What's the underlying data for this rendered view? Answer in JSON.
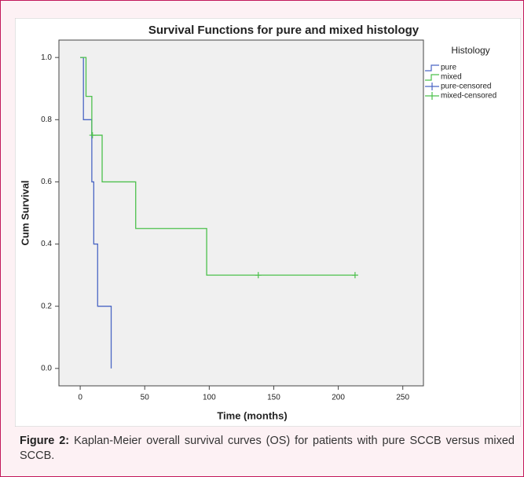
{
  "chart_data": {
    "type": "step",
    "title": "Survival Functions for pure and mixed histology",
    "x_label": "Time (months)",
    "y_label": "Cum Survival",
    "legend_title": "Histology",
    "xlim": [
      -16.5,
      266
    ],
    "xticks": [
      0,
      50,
      100,
      150,
      200,
      250
    ],
    "ylim": [
      -0.056,
      1.056
    ],
    "yticks": [
      {
        "value": 0,
        "label": "0.0"
      },
      {
        "value": 0.2,
        "label": "0.2"
      },
      {
        "value": 0.4,
        "label": "0.4"
      },
      {
        "value": 0.6,
        "label": "0.6"
      },
      {
        "value": 0.8,
        "label": "0.8"
      },
      {
        "value": 1,
        "label": "1.0"
      }
    ],
    "series": [
      {
        "name": "pure",
        "kind": "step",
        "color": "#4a66c4",
        "x": [
          0,
          2.5,
          9,
          10.5,
          13.5,
          24
        ],
        "values": [
          1.0,
          0.8,
          0.6,
          0.4,
          0.2,
          0.0
        ]
      },
      {
        "name": "mixed",
        "kind": "step",
        "color": "#4cc04c",
        "x": [
          0,
          4.5,
          9,
          17,
          43,
          98,
          213
        ],
        "values": [
          1.0,
          0.875,
          0.75,
          0.6,
          0.45,
          0.3,
          0.3
        ]
      },
      {
        "name": "pure-censored",
        "kind": "censor",
        "color": "#4a66c4",
        "x": [],
        "values": []
      },
      {
        "name": "mixed-censored",
        "kind": "censor",
        "color": "#4cc04c",
        "x": [
          9.5,
          138,
          213
        ],
        "values": [
          0.75,
          0.3,
          0.3
        ]
      }
    ]
  },
  "caption": {
    "label": "Figure 2:",
    "text": "Kaplan-Meier overall survival curves (OS) for patients with pure SCCB versus mixed SCCB."
  }
}
